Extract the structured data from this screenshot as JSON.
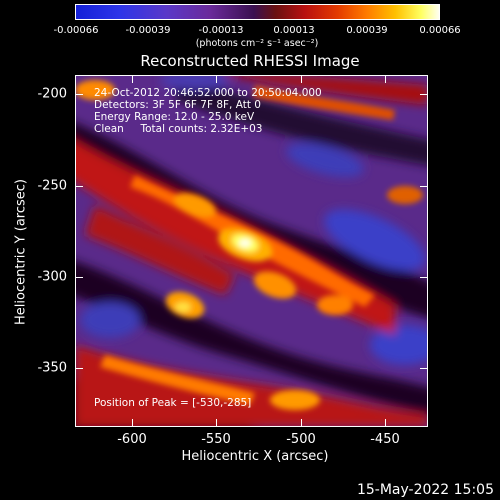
{
  "colorbar": {
    "ticks": [
      "-0.00066",
      "-0.00039",
      "-0.00013",
      "0.00013",
      "0.00039",
      "0.00066"
    ],
    "unit": "(photons cm⁻² s⁻¹ asec⁻²)"
  },
  "title": "Reconstructed RHESSI Image",
  "info": {
    "line1": "24-Oct-2012 20:46:52.000 to 20:50:04.000",
    "line2": "Detectors: 3F 5F 6F 7F 8F, Att 0",
    "line3": "Energy Range: 12.0 - 25.0 keV",
    "line4": "Clean     Total counts: 2.32E+03"
  },
  "peak_label": "Position of Peak = [-530,-285]",
  "axes": {
    "xlabel": "Heliocentric X (arcsec)",
    "ylabel": "Heliocentric Y (arcsec)",
    "xticks": [
      "-600",
      "-550",
      "-500",
      "-450"
    ],
    "yticks": [
      "-200",
      "-250",
      "-300",
      "-350"
    ]
  },
  "timestamp": "15-May-2022 15:05",
  "colors": {
    "background": "#000000",
    "text": "#ffffff"
  }
}
